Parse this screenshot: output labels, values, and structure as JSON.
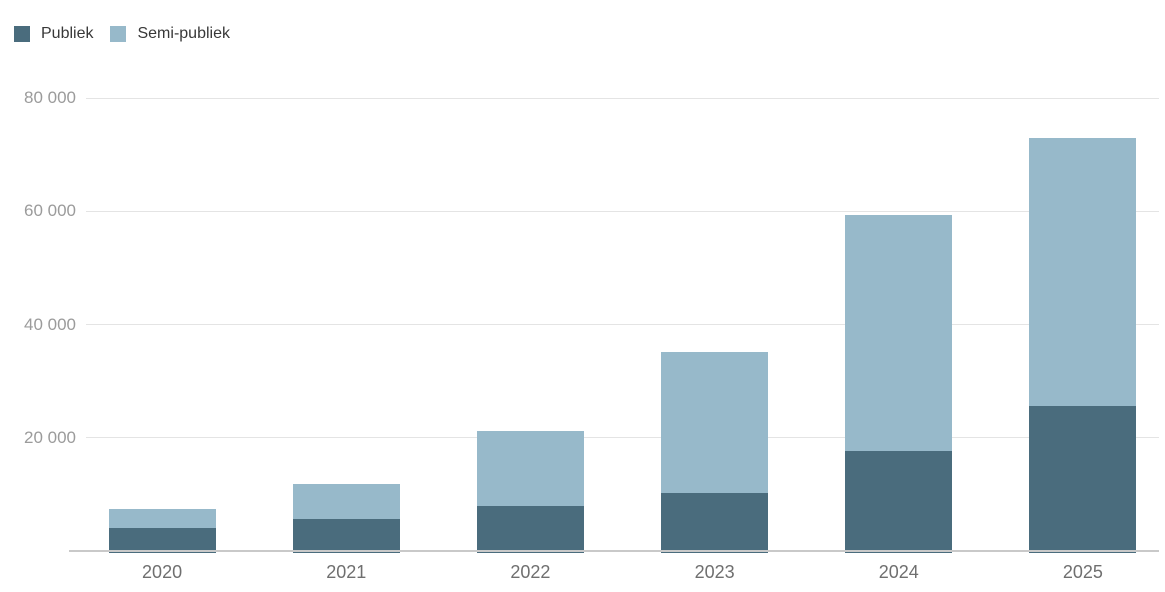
{
  "chart_data": {
    "type": "bar",
    "stacked": true,
    "title": "",
    "xlabel": "",
    "ylabel": "",
    "categories": [
      "2020",
      "2021",
      "2022",
      "2023",
      "2024",
      "2025"
    ],
    "series": [
      {
        "name": "Publiek",
        "color": "#4a6c7d",
        "values": [
          4000,
          5700,
          8000,
          10300,
          17600,
          25600
        ]
      },
      {
        "name": "Semi-publiek",
        "color": "#97b9ca",
        "values": [
          3400,
          6100,
          13200,
          24800,
          41800,
          47400
        ]
      }
    ],
    "totals": [
      7400,
      11800,
      21200,
      35100,
      59400,
      73000
    ],
    "ylim": [
      0,
      80000
    ],
    "yticks": [
      {
        "value": 20000,
        "label": "20 000"
      },
      {
        "value": 40000,
        "label": "40 000"
      },
      {
        "value": 60000,
        "label": "60 000"
      },
      {
        "value": 80000,
        "label": "80 000"
      }
    ],
    "grid": true,
    "legend_position": "top-left"
  }
}
